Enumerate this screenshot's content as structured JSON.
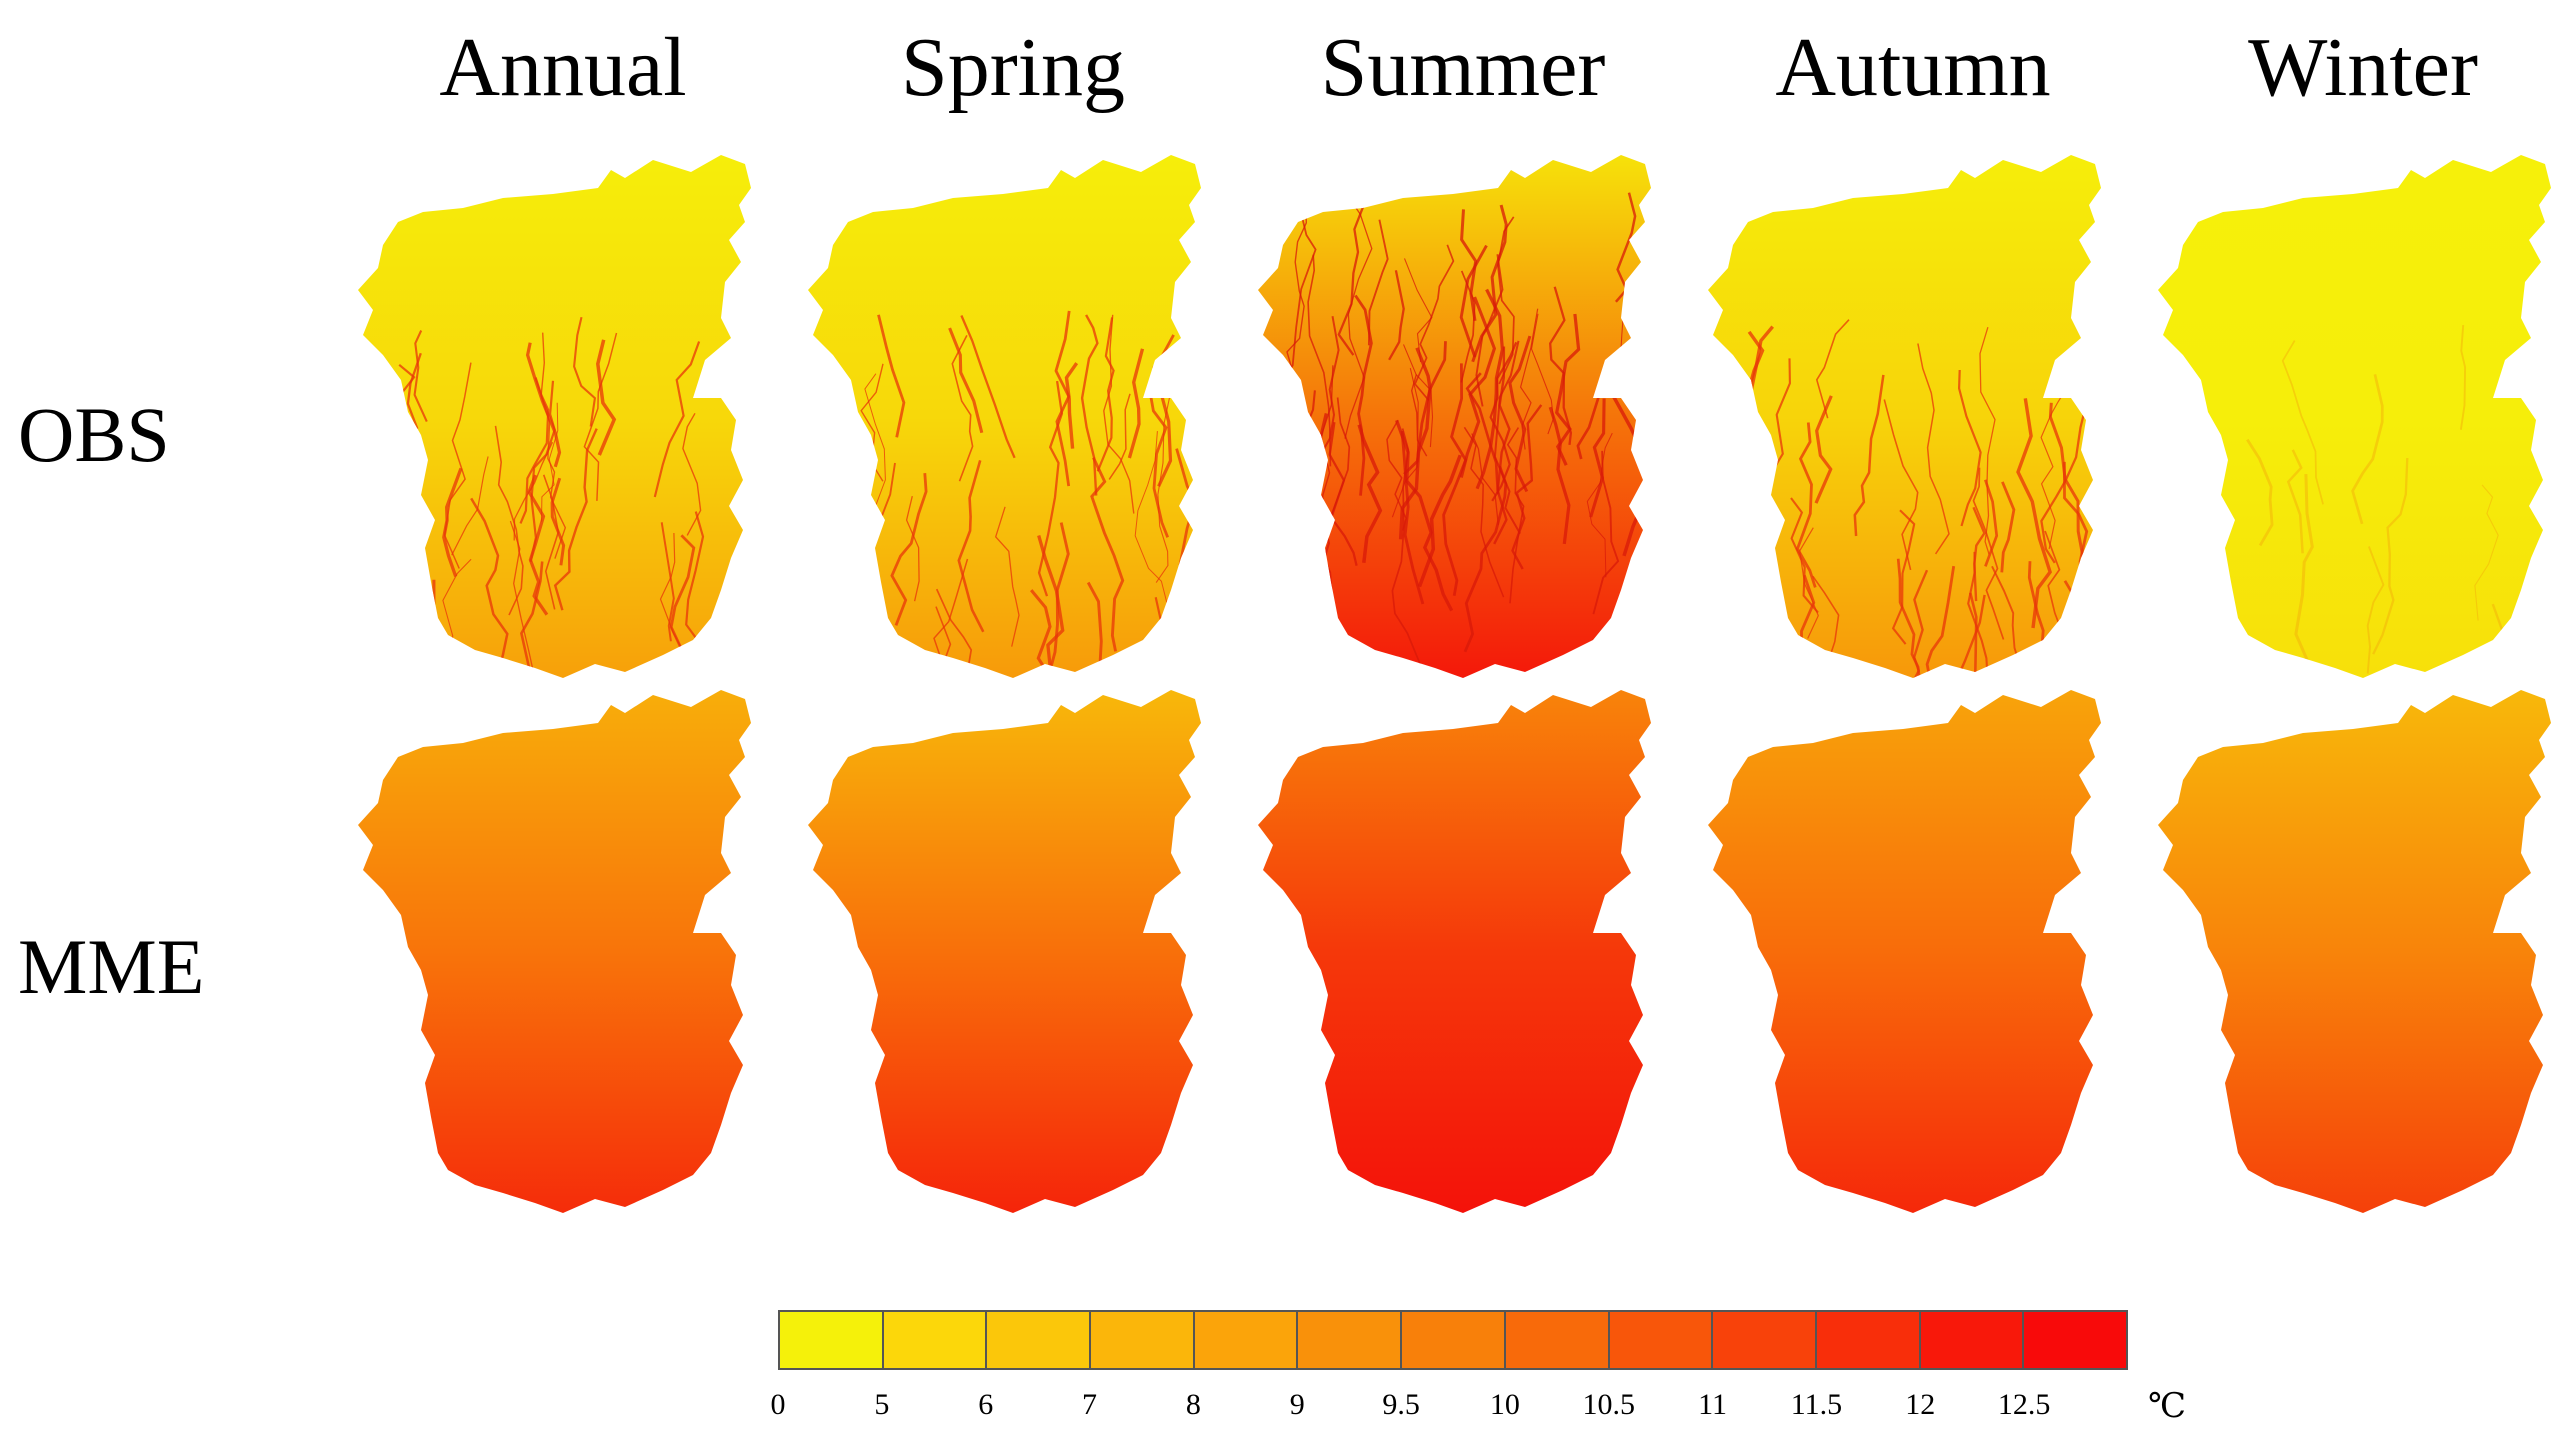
{
  "columns": [
    {
      "key": "annual",
      "title": "Annual"
    },
    {
      "key": "spring",
      "title": "Spring"
    },
    {
      "key": "summer",
      "title": "Summer"
    },
    {
      "key": "autumn",
      "title": "Autumn"
    },
    {
      "key": "winter",
      "title": "Winter"
    }
  ],
  "rows": [
    {
      "key": "obs",
      "label": "OBS"
    },
    {
      "key": "mme",
      "label": "MME"
    }
  ],
  "colorbar": {
    "colors": [
      "#f5f10a",
      "#fcd70a",
      "#fbc70a",
      "#fbb60a",
      "#fba40a",
      "#f9910a",
      "#f8800a",
      "#f86a0a",
      "#f8560a",
      "#f8420a",
      "#f82e0a",
      "#f8180a",
      "#f80a0a"
    ],
    "ticks": [
      "0",
      "5",
      "6",
      "7",
      "8",
      "9",
      "9.5",
      "10",
      "10.5",
      "11",
      "11.5",
      "12",
      "12.5"
    ],
    "unit": "℃"
  },
  "panel_fill": {
    "obs": {
      "annual": {
        "top": "#f6ee0a",
        "mid": "#f7d80a",
        "bottom": "#f7a00a",
        "streaks": "#e8360a"
      },
      "spring": {
        "top": "#f6ee0a",
        "mid": "#f7d80a",
        "bottom": "#f79a0a",
        "streaks": "#e8360a"
      },
      "summer": {
        "top": "#f6e20a",
        "mid": "#f5740a",
        "bottom": "#f4180a",
        "streaks": "#d81a0a"
      },
      "autumn": {
        "top": "#f6ee0a",
        "mid": "#f7d40a",
        "bottom": "#f7980a",
        "streaks": "#e8360a"
      },
      "winter": {
        "top": "#f6f00a",
        "mid": "#f6ee0a",
        "bottom": "#f7e00a",
        "streaks": "#f4b00a"
      }
    },
    "mme": {
      "annual": {
        "top": "#f8ae0a",
        "mid": "#f8740a",
        "bottom": "#f52c0a"
      },
      "spring": {
        "top": "#f8b80a",
        "mid": "#f8700a",
        "bottom": "#f5240a"
      },
      "summer": {
        "top": "#f8840a",
        "mid": "#f5380a",
        "bottom": "#f4120a"
      },
      "autumn": {
        "top": "#f8a40a",
        "mid": "#f86c0a",
        "bottom": "#f5280a"
      },
      "winter": {
        "top": "#f8b80a",
        "mid": "#f8840a",
        "bottom": "#f5400a"
      }
    }
  }
}
